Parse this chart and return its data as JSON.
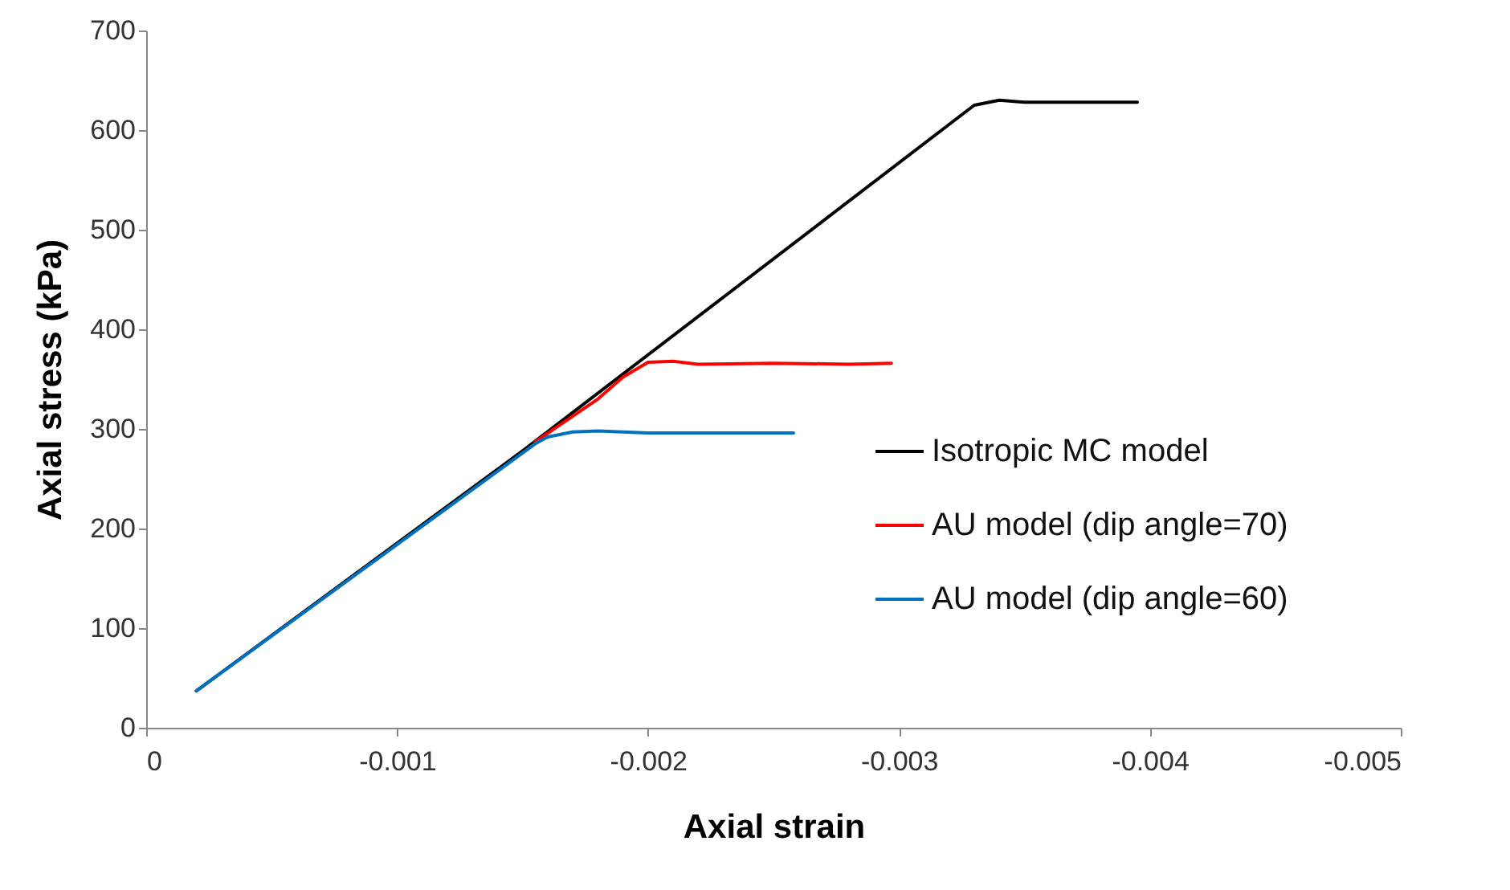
{
  "chart_data": {
    "type": "line",
    "xlabel": "Axial strain",
    "ylabel": "Axial stress (kPa)",
    "xlim": [
      0,
      -0.005
    ],
    "xticks": [
      0,
      -0.001,
      -0.002,
      -0.003,
      -0.004,
      -0.005
    ],
    "ylim": [
      0,
      700
    ],
    "yticks": [
      0,
      100,
      200,
      300,
      400,
      500,
      600,
      700
    ],
    "grid": false,
    "legend": "bottom right",
    "line_style": "solid",
    "marker": "none",
    "series": [
      {
        "name": "Isotropic MC model",
        "color": "#000000",
        "x": [
          -0.0002,
          -0.0015,
          -0.0033,
          -0.0034,
          -0.0035,
          -0.00395
        ],
        "values": [
          37,
          278,
          625,
          630,
          628,
          628
        ]
      },
      {
        "name": "AU model (dip angle=70)",
        "color": "#ff0000",
        "x": [
          -0.00155,
          -0.0018,
          -0.0019,
          -0.002,
          -0.0021,
          -0.0022,
          -0.0025,
          -0.0028,
          -0.00297
        ],
        "values": [
          287,
          330,
          352,
          367,
          368,
          365,
          366,
          365,
          366
        ]
      },
      {
        "name": "AU model (dip angle=60)",
        "color": "#0070c0",
        "x": [
          -0.0002,
          -0.00155,
          -0.0016,
          -0.0017,
          -0.0018,
          -0.002,
          -0.0022,
          -0.00258
        ],
        "values": [
          37,
          285,
          292,
          297,
          298,
          296,
          296,
          296
        ]
      }
    ]
  }
}
